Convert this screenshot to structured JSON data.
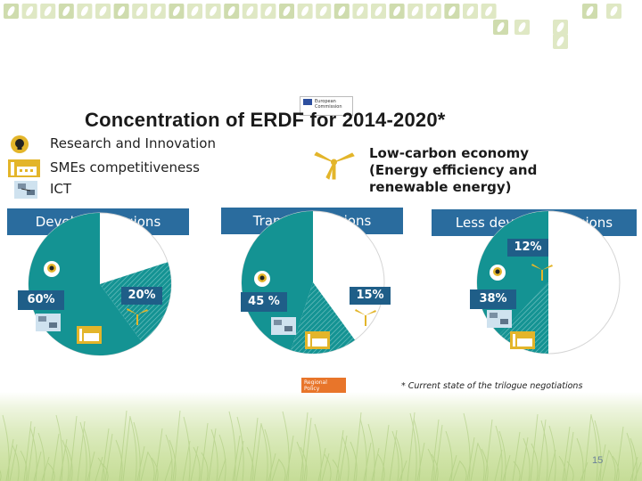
{
  "title": "Concentration of ERDF for 2014-2020*",
  "logo_text": [
    "European",
    "Commission"
  ],
  "legend": [
    {
      "icon": "lightbulb-icon",
      "label": "Research and Innovation"
    },
    {
      "icon": "factory-icon",
      "label": "SMEs competitiveness"
    },
    {
      "icon": "network-icon",
      "label": "ICT"
    }
  ],
  "low_carbon": {
    "icon": "wind-turbine-icon",
    "lines": [
      "Low-carbon economy",
      "(Energy efficiency and",
      "renewable energy)"
    ]
  },
  "badge": [
    "Regional",
    "Policy"
  ],
  "footnote": "* Current state of the trilogue negotiations",
  "page_number": "15",
  "colors": {
    "teal": "#149393",
    "teal_hatch": "#35a6a6",
    "header_blue": "#2a6c9e",
    "label_blue": "#1f5e88",
    "accent_orange": "#e8752a"
  },
  "chart_data": [
    {
      "type": "pie",
      "title": "Developed regions",
      "segments": [
        {
          "label": "60%",
          "value": 60,
          "category": "Research and Innovation, SMEs competitiveness, ICT"
        },
        {
          "label": "20%",
          "value": 20,
          "category": "Low-carbon economy"
        }
      ]
    },
    {
      "type": "pie",
      "title": "Transition regions",
      "segments": [
        {
          "label": "45 %",
          "value": 45,
          "category": "Research and Innovation, SMEs competitiveness, ICT"
        },
        {
          "label": "15%",
          "value": 15,
          "category": "Low-carbon economy"
        }
      ]
    },
    {
      "type": "pie",
      "title": "Less developed regions",
      "segments": [
        {
          "label": "38%",
          "value": 38,
          "category": "Research and Innovation, SMEs competitiveness, ICT"
        },
        {
          "label": "12%",
          "value": 12,
          "category": "Low-carbon economy"
        }
      ]
    }
  ]
}
